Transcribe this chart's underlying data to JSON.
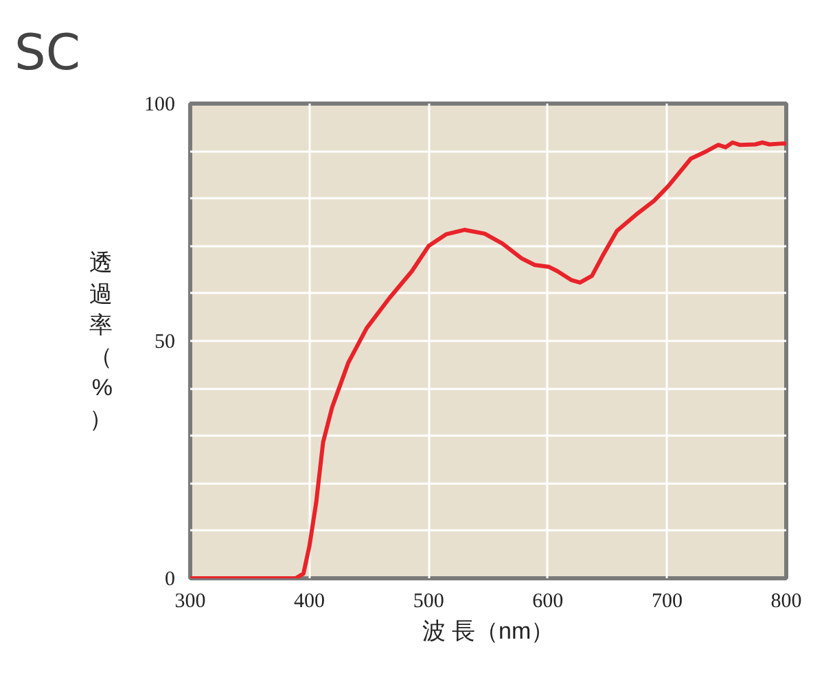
{
  "chart_data": {
    "type": "line",
    "title": "SC",
    "xlabel": "波 長（nm）",
    "ylabel": "透過率（%）",
    "x": [
      300,
      388.5,
      395,
      400,
      405.7,
      411.5,
      419,
      432.6,
      448,
      467,
      486,
      500,
      515,
      530,
      547,
      562,
      578,
      589,
      601,
      608,
      620,
      627,
      637,
      647,
      658,
      674,
      689,
      701,
      720,
      731,
      743,
      749,
      755,
      761,
      774,
      780,
      786,
      797,
      800
    ],
    "series": [
      {
        "color": "#e8232a",
        "values": [
          0,
          0,
          1,
          6.8,
          16,
          28.7,
          36,
          45.4,
          52.7,
          59,
          64.7,
          70,
          72.5,
          73.4,
          72.6,
          70.5,
          67.4,
          66,
          65.6,
          64.7,
          62.8,
          62.3,
          63.7,
          68.4,
          73.2,
          76.6,
          79.5,
          82.6,
          88.4,
          89.7,
          91.3,
          90.8,
          91.8,
          91.3,
          91.4,
          91.8,
          91.4,
          91.6,
          91.6
        ]
      }
    ],
    "xlim": [
      300,
      800
    ],
    "ylim": [
      0,
      100
    ],
    "xticks": [
      300,
      400,
      500,
      600,
      700,
      800
    ],
    "yticks": [
      0,
      {
        "value": 10,
        "label": null
      },
      {
        "value": 20,
        "label": null
      },
      {
        "value": 30,
        "label": null
      },
      {
        "value": 40,
        "label": null
      },
      50,
      {
        "value": 60,
        "label": null
      },
      {
        "value": 70,
        "label": null
      },
      {
        "value": 80,
        "label": null
      },
      {
        "value": 90,
        "label": null
      },
      100
    ],
    "grid": true,
    "marker": "none",
    "line_style": "solid"
  }
}
